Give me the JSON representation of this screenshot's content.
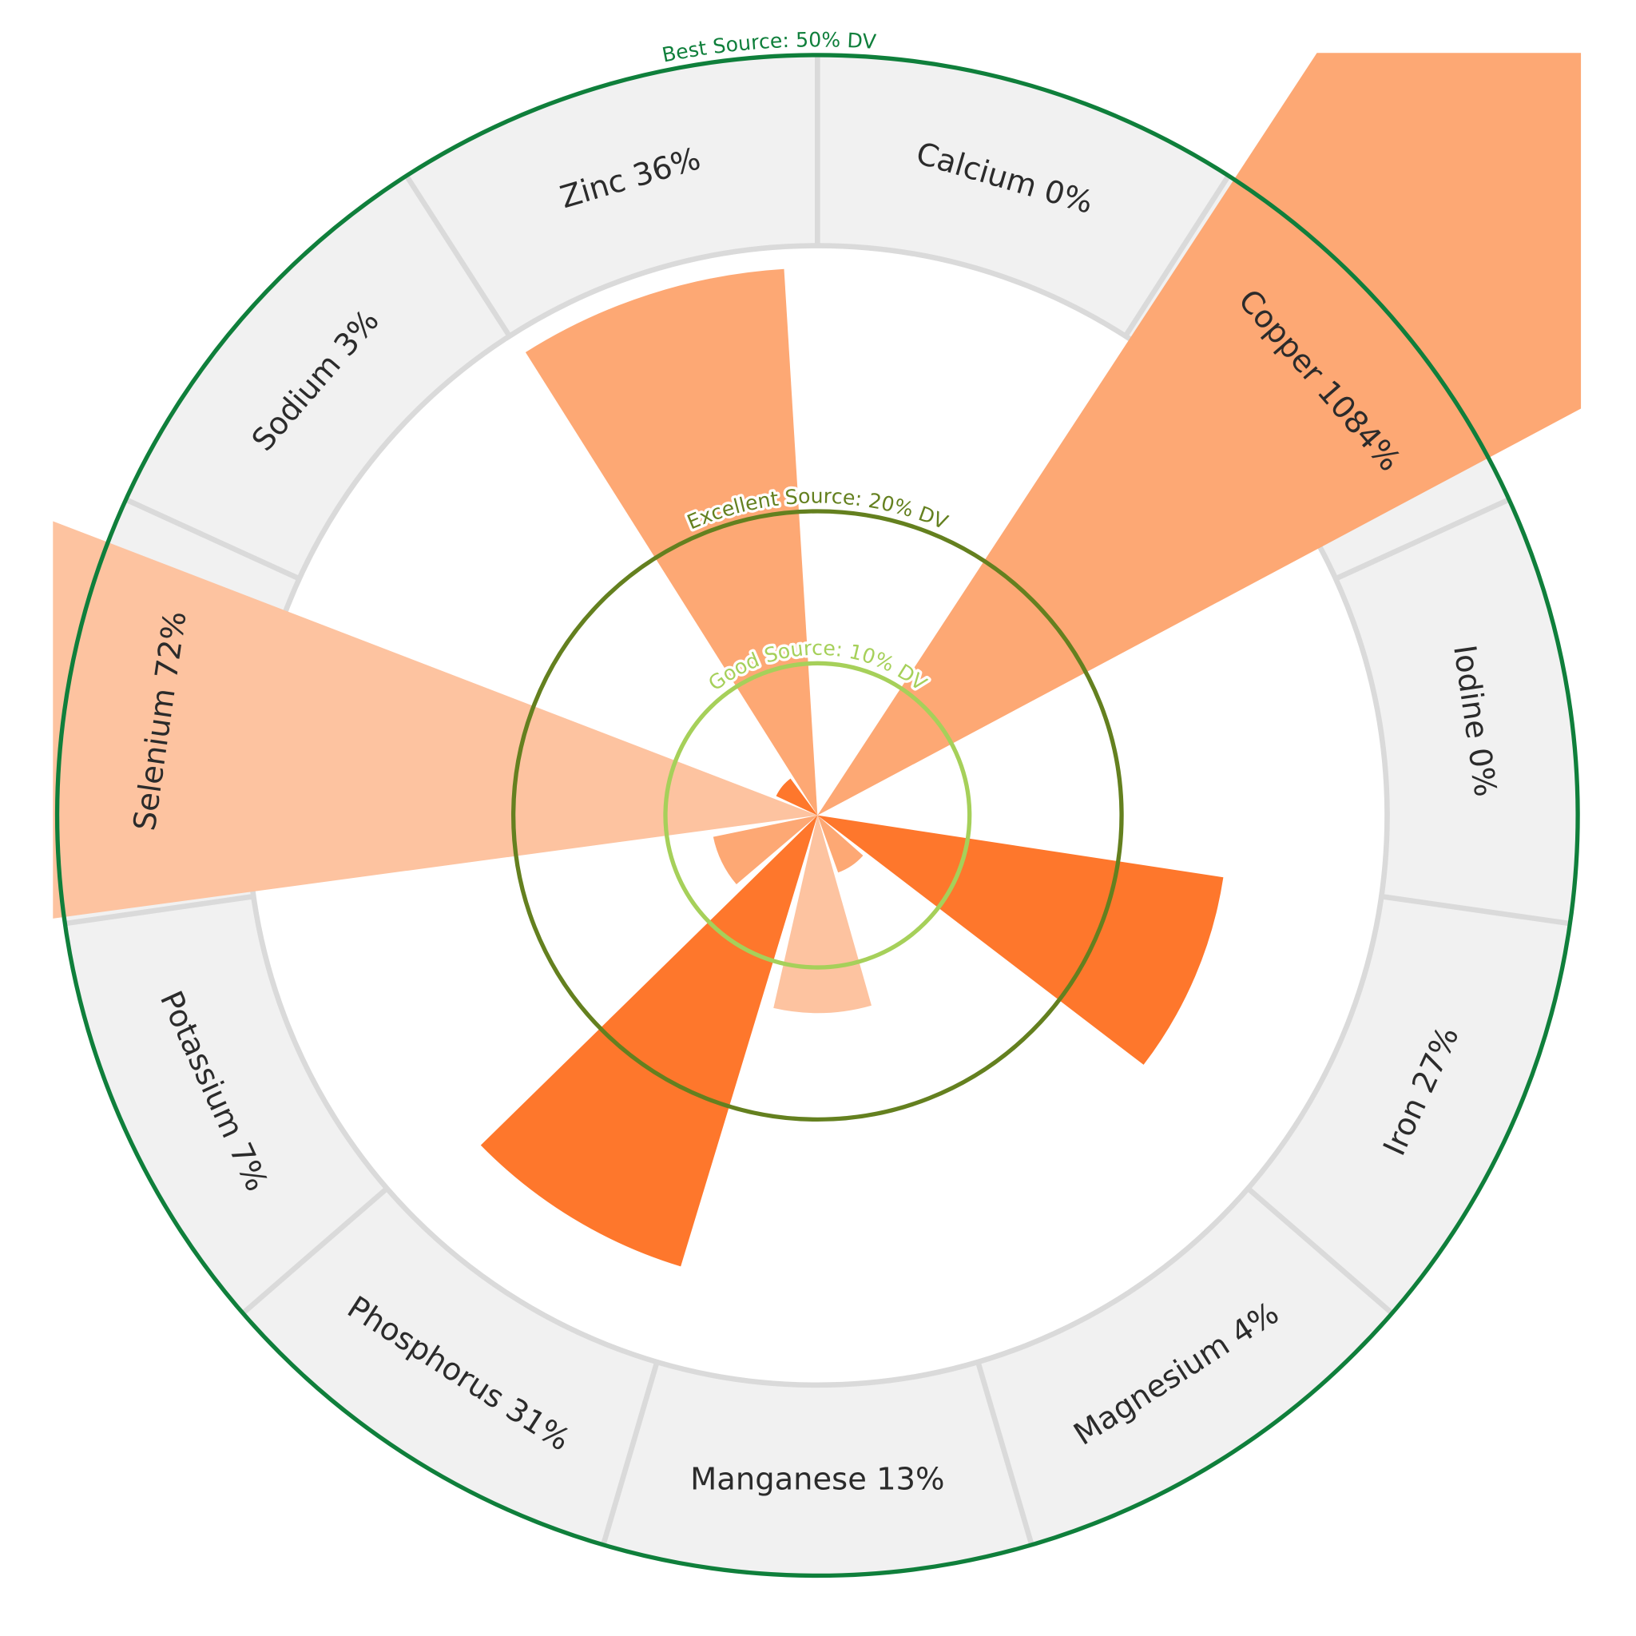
{
  "chart_data": {
    "type": "polar-bar",
    "title": "",
    "unit": "% DV",
    "categories": [
      "Calcium",
      "Copper",
      "Iodine",
      "Iron",
      "Magnesium",
      "Manganese",
      "Phosphorus",
      "Potassium",
      "Selenium",
      "Sodium",
      "Zinc"
    ],
    "values": [
      0,
      1084,
      0,
      27,
      4,
      13,
      31,
      7,
      72,
      3,
      36
    ],
    "labels": [
      "Calcium 0%",
      "Copper 1084%",
      "Iodine 0%",
      "Iron 27%",
      "Magnesium 4%",
      "Manganese 13%",
      "Phosphorus 31%",
      "Potassium 7%",
      "Selenium 72%",
      "Sodium 3%",
      "Zinc 36%"
    ],
    "bar_colors": [
      "#fda874",
      "#fda874",
      "#fda874",
      "#fe772c",
      "#fda874",
      "#fdc3a0",
      "#fe772c",
      "#fda874",
      "#fdc3a0",
      "#fe772c",
      "#fda874"
    ],
    "radial_range": [
      0,
      50
    ],
    "thresholds": [
      {
        "value": 10,
        "label": "Good Source: 10% DV",
        "color": "#a6d05a"
      },
      {
        "value": 20,
        "label": "Excellent Source: 20% DV",
        "color": "#64801f"
      },
      {
        "value": 50,
        "label": "Best Source: 50% DV",
        "color": "#0f7f3b"
      }
    ],
    "band_color": "#f1f1f1",
    "divider_color": "#dadada"
  }
}
